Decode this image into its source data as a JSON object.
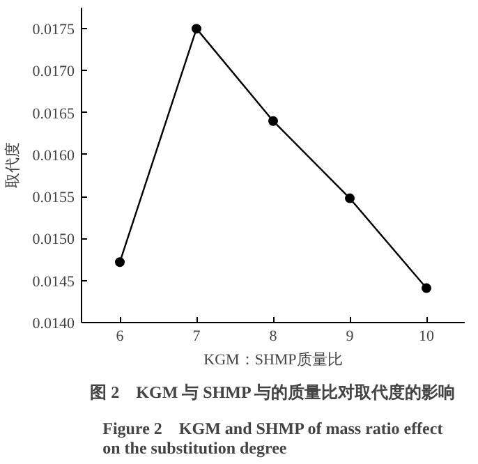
{
  "chart_data": {
    "type": "line",
    "title": "图 2　KGM 与 SHMP 与的质量比对取代度的影响",
    "subtitle": "Figure 2　KGM and SHMP of mass ratio effect on the substitution degree",
    "xlabel": "KGM：SHMP质量比",
    "ylabel": "取代度",
    "x": [
      6,
      7,
      8,
      9,
      10
    ],
    "series": [
      {
        "color": "#000000",
        "values": [
          0.01472,
          0.0175,
          0.0164,
          0.01548,
          0.01441
        ]
      }
    ],
    "xlim": [
      5.5,
      10.5
    ],
    "xticks": [
      6,
      7,
      8,
      9,
      10
    ],
    "ylim": [
      0.014,
      0.01775
    ],
    "yticks": [
      {
        "value": 0.014,
        "label": "0.0140"
      },
      {
        "value": 0.0145,
        "label": "0.0145"
      },
      {
        "value": 0.015,
        "label": "0.0150"
      },
      {
        "value": 0.0155,
        "label": "0.0155"
      },
      {
        "value": 0.016,
        "label": "0.0160"
      },
      {
        "value": 0.0165,
        "label": "0.0165"
      },
      {
        "value": 0.017,
        "label": "0.0170"
      },
      {
        "value": 0.0175,
        "label": "0.0175"
      }
    ],
    "marker": "circle",
    "line_style": "solid",
    "grid": false
  }
}
